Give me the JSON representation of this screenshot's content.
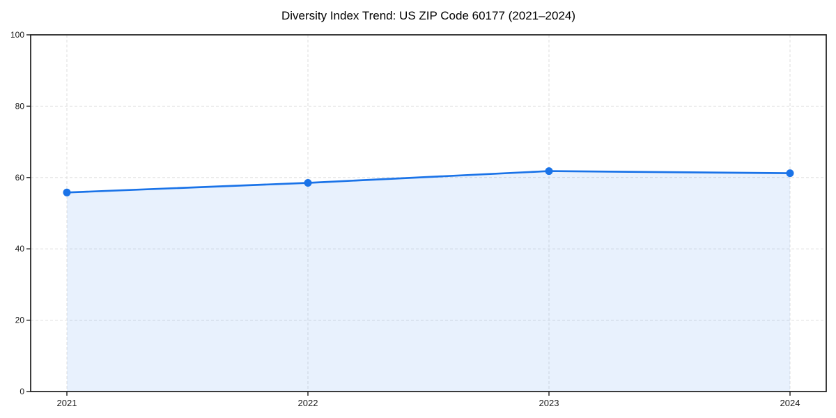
{
  "chart_data": {
    "type": "line",
    "title": "Diversity Index Trend: US ZIP Code 60177 (2021–2024)",
    "categories": [
      "2021",
      "2022",
      "2023",
      "2024"
    ],
    "series": [
      {
        "name": "Diversity Index",
        "values": [
          55.8,
          58.5,
          61.8,
          61.2
        ]
      }
    ],
    "ylim": [
      0,
      100
    ],
    "yticks": [
      0,
      20,
      40,
      60,
      80,
      100
    ],
    "xlabel": "",
    "ylabel": "",
    "legend": "none",
    "grid": "dashed-both-axes",
    "area_fill": true,
    "marker": "circle",
    "colors": {
      "line": "#1a73e8",
      "marker": "#1a73e8",
      "fill": "#1a73e8",
      "fill_opacity": 0.1,
      "grid": "#dedede",
      "spine": "#1a1a1a",
      "tick_label": "#1a1a1a",
      "background": "#ffffff"
    }
  }
}
